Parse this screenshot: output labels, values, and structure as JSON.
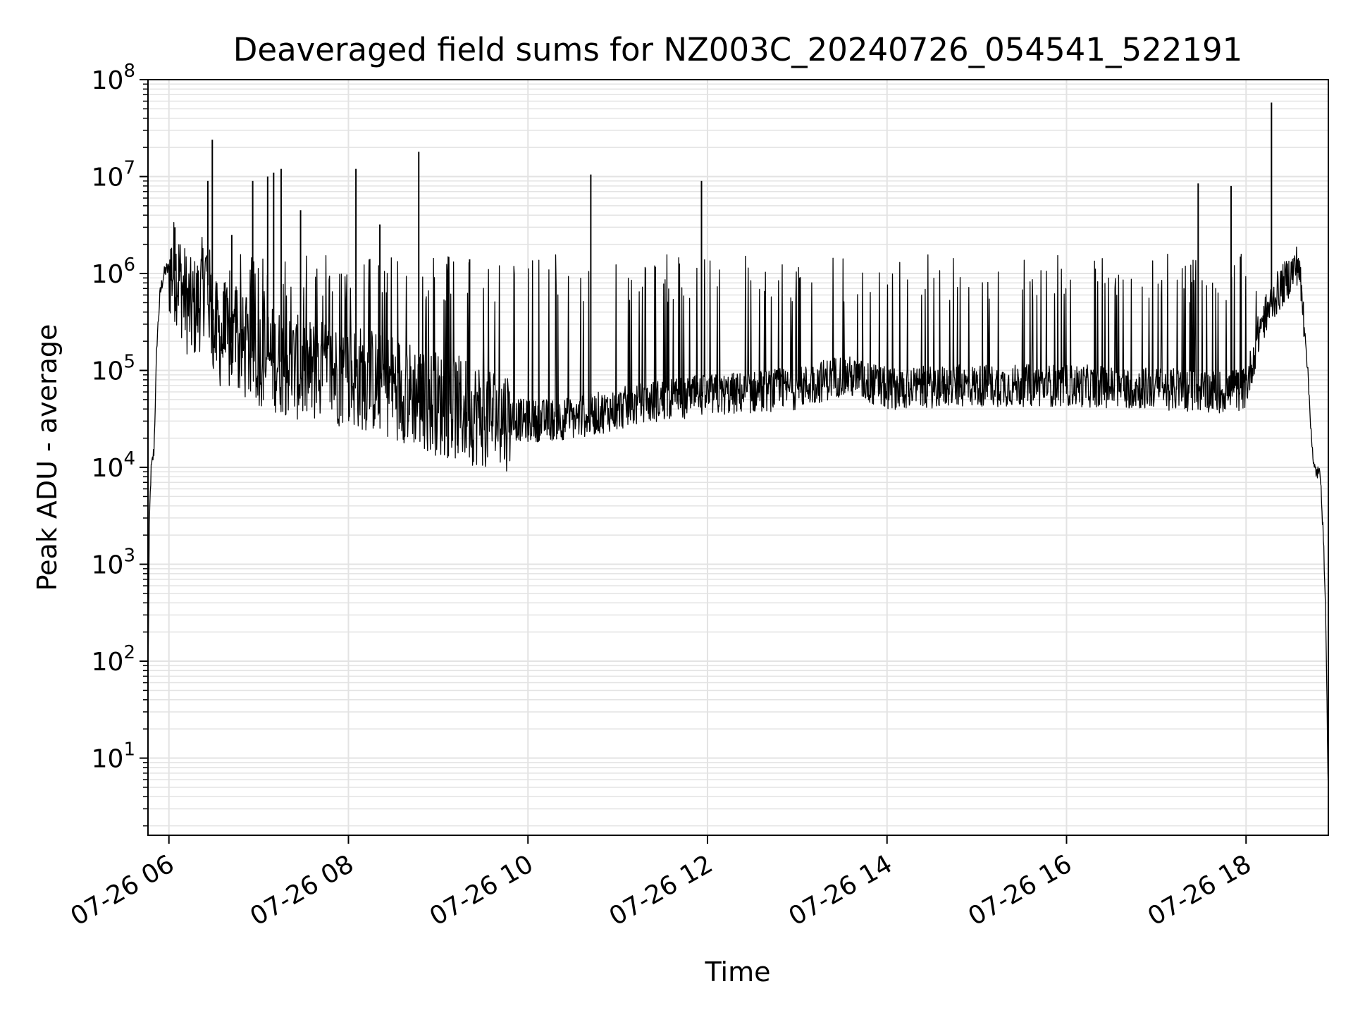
{
  "chart_data": {
    "type": "line",
    "title": "Deaveraged field sums for NZ003C_20240726_054541_522191",
    "xlabel": "Time",
    "ylabel": "Peak ADU - average",
    "yscale": "log",
    "xlim": [
      "07-26 05:46",
      "07-26 18:55"
    ],
    "ylim": [
      1.6,
      100000000
    ],
    "grid": true,
    "x_ticks": [
      "07-26 06",
      "07-26 08",
      "07-26 10",
      "07-26 12",
      "07-26 14",
      "07-26 16",
      "07-26 18"
    ],
    "x_tick_hours": [
      6,
      8,
      10,
      12,
      14,
      16,
      18
    ],
    "y_ticks": [
      {
        "base": "10",
        "exp": "1"
      },
      {
        "base": "10",
        "exp": "2"
      },
      {
        "base": "10",
        "exp": "3"
      },
      {
        "base": "10",
        "exp": "4"
      },
      {
        "base": "10",
        "exp": "5"
      },
      {
        "base": "10",
        "exp": "6"
      },
      {
        "base": "10",
        "exp": "7"
      },
      {
        "base": "10",
        "exp": "8"
      }
    ],
    "line_color": "#000000",
    "grid_color": "#e3e3e3",
    "series": [
      {
        "x": [
          "07-26 05:46",
          "07-26 05:47",
          "07-26 05:48",
          "07-26 05:50",
          "07-26 05:52",
          "07-26 05:54",
          "07-26 05:56",
          "07-26 05:58",
          "07-26 06:00",
          "07-26 06:03",
          "07-26 06:06",
          "07-26 06:10",
          "07-26 06:15",
          "07-26 06:20",
          "07-26 06:25",
          "07-26 06:30",
          "07-26 06:45",
          "07-26 07:00",
          "07-26 07:30",
          "07-26 08:00",
          "07-26 08:30",
          "07-26 09:00",
          "07-26 09:30",
          "07-26 10:00",
          "07-26 10:30",
          "07-26 11:00",
          "07-26 11:30",
          "07-26 12:00",
          "07-26 13:00",
          "07-26 13:30",
          "07-26 14:00",
          "07-26 15:00",
          "07-26 16:00",
          "07-26 17:00",
          "07-26 17:45",
          "07-26 18:00",
          "07-26 18:10",
          "07-26 18:20",
          "07-26 18:30",
          "07-26 18:35",
          "07-26 18:40",
          "07-26 18:45",
          "07-26 18:50",
          "07-26 18:53",
          "07-26 18:55"
        ],
        "y": [
          60,
          3000,
          9000,
          15000,
          200000,
          600000,
          900000,
          1100000,
          1100000,
          1100000,
          1000000,
          600000,
          400000,
          500000,
          1000000,
          250000,
          180000,
          150000,
          100000,
          90000,
          70000,
          45000,
          35000,
          30000,
          32000,
          40000,
          50000,
          55000,
          65000,
          90000,
          65000,
          70000,
          70000,
          65000,
          60000,
          65000,
          300000,
          600000,
          1000000,
          1300000,
          200000,
          10000,
          8000,
          500,
          4
        ]
      }
    ],
    "spikes": [
      {
        "x": "07-26 06:04",
        "y": 3000000
      },
      {
        "x": "07-26 06:26",
        "y": 9000000
      },
      {
        "x": "07-26 06:29",
        "y": 24000000
      },
      {
        "x": "07-26 06:42",
        "y": 2500000
      },
      {
        "x": "07-26 06:56",
        "y": 9000000
      },
      {
        "x": "07-26 07:06",
        "y": 10000000
      },
      {
        "x": "07-26 07:10",
        "y": 11000000
      },
      {
        "x": "07-26 07:15",
        "y": 12000000
      },
      {
        "x": "07-26 07:28",
        "y": 4500000
      },
      {
        "x": "07-26 08:05",
        "y": 12000000
      },
      {
        "x": "07-26 08:21",
        "y": 3200000
      },
      {
        "x": "07-26 08:47",
        "y": 18000000
      },
      {
        "x": "07-26 09:21",
        "y": 1400000
      },
      {
        "x": "07-26 10:42",
        "y": 10500000
      },
      {
        "x": "07-26 11:56",
        "y": 9000000
      },
      {
        "x": "07-26 17:28",
        "y": 8500000
      },
      {
        "x": "07-26 17:50",
        "y": 8000000
      },
      {
        "x": "07-26 18:17",
        "y": 58000000
      }
    ]
  }
}
